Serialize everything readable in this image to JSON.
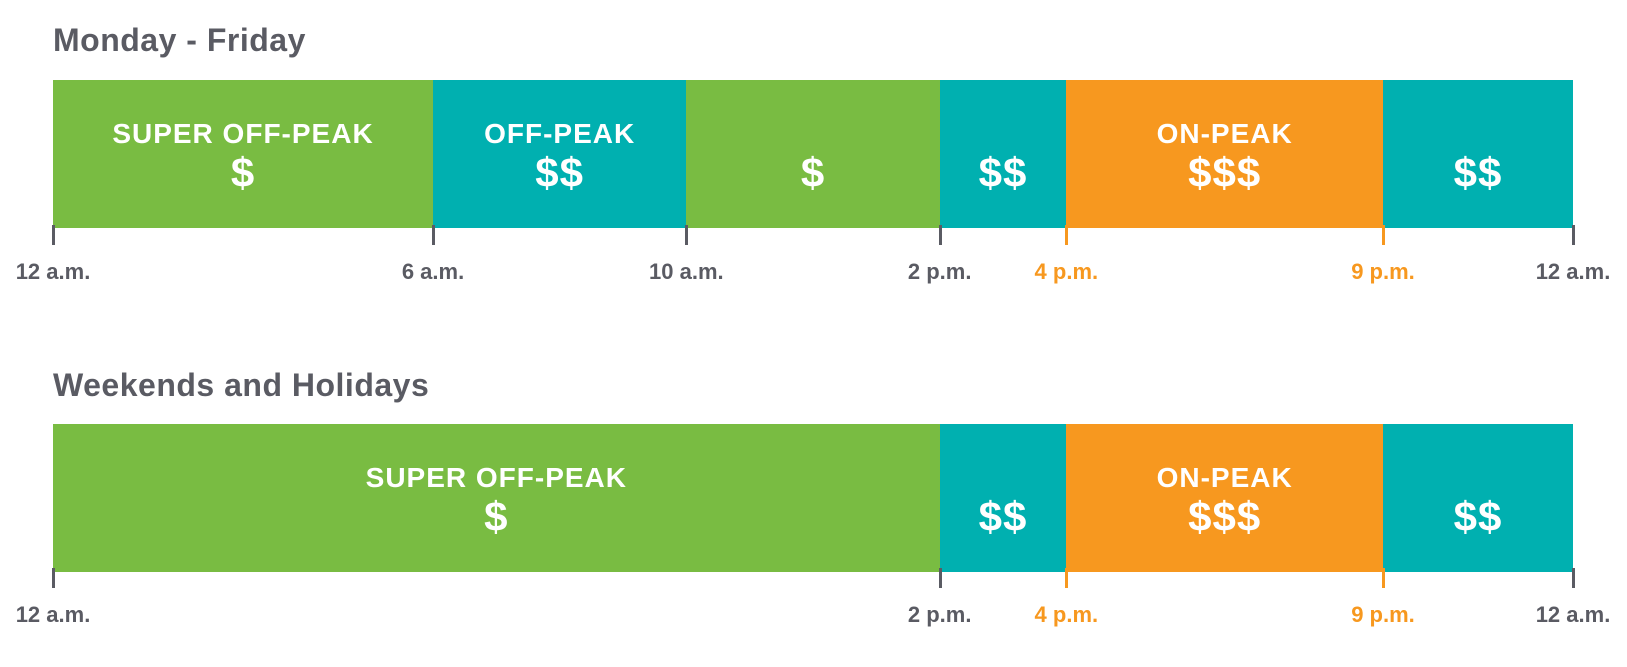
{
  "colors": {
    "super_off_peak": "#79bc42",
    "off_peak": "#00b0b0",
    "on_peak": "#f7981f",
    "text_dark": "#5a5b63"
  },
  "schedules": [
    {
      "title": "Monday - Friday",
      "segments": [
        {
          "label": "SUPER OFF-PEAK",
          "price": "$",
          "tier": "super_off_peak",
          "start_hour": 0,
          "end_hour": 6
        },
        {
          "label": "OFF-PEAK",
          "price": "$$",
          "tier": "off_peak",
          "start_hour": 6,
          "end_hour": 10
        },
        {
          "label": "",
          "price": "$",
          "tier": "super_off_peak",
          "start_hour": 10,
          "end_hour": 14
        },
        {
          "label": "",
          "price": "$$",
          "tier": "off_peak",
          "start_hour": 14,
          "end_hour": 16
        },
        {
          "label": "ON-PEAK",
          "price": "$$$",
          "tier": "on_peak",
          "start_hour": 16,
          "end_hour": 21
        },
        {
          "label": "",
          "price": "$$",
          "tier": "off_peak",
          "start_hour": 21,
          "end_hour": 24
        }
      ],
      "ticks": [
        {
          "hour": 0,
          "label": "12 a.m.",
          "highlight": false
        },
        {
          "hour": 6,
          "label": "6 a.m.",
          "highlight": false
        },
        {
          "hour": 10,
          "label": "10 a.m.",
          "highlight": false
        },
        {
          "hour": 14,
          "label": "2 p.m.",
          "highlight": false
        },
        {
          "hour": 16,
          "label": "4 p.m.",
          "highlight": true
        },
        {
          "hour": 21,
          "label": "9 p.m.",
          "highlight": true
        },
        {
          "hour": 24,
          "label": "12 a.m.",
          "highlight": false
        }
      ]
    },
    {
      "title": "Weekends and Holidays",
      "segments": [
        {
          "label": "SUPER OFF-PEAK",
          "price": "$",
          "tier": "super_off_peak",
          "start_hour": 0,
          "end_hour": 14
        },
        {
          "label": "",
          "price": "$$",
          "tier": "off_peak",
          "start_hour": 14,
          "end_hour": 16
        },
        {
          "label": "ON-PEAK",
          "price": "$$$",
          "tier": "on_peak",
          "start_hour": 16,
          "end_hour": 21
        },
        {
          "label": "",
          "price": "$$",
          "tier": "off_peak",
          "start_hour": 21,
          "end_hour": 24
        }
      ],
      "ticks": [
        {
          "hour": 0,
          "label": "12 a.m.",
          "highlight": false
        },
        {
          "hour": 14,
          "label": "2 p.m.",
          "highlight": false
        },
        {
          "hour": 16,
          "label": "4 p.m.",
          "highlight": true
        },
        {
          "hour": 21,
          "label": "9 p.m.",
          "highlight": true
        },
        {
          "hour": 24,
          "label": "12 a.m.",
          "highlight": false
        }
      ]
    }
  ]
}
